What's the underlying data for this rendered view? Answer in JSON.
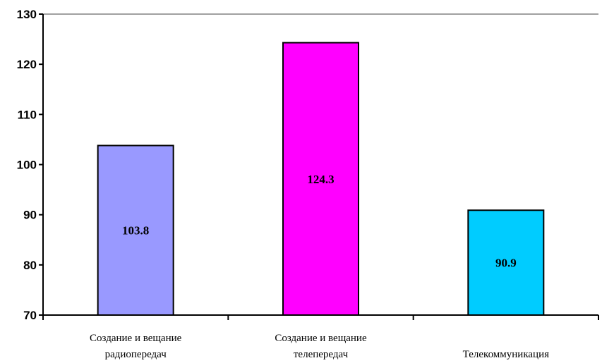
{
  "chart_data": {
    "type": "bar",
    "categories": [
      [
        "Создание и вещание",
        "радиопередач"
      ],
      [
        "Создание и вещание",
        "телепередач"
      ],
      [
        "Телекоммуникация"
      ]
    ],
    "values": [
      103.8,
      124.3,
      90.9
    ],
    "data_labels": [
      "103.8",
      "124.3",
      "90.9"
    ],
    "bar_colors": [
      "#9999ff",
      "#ff00ff",
      "#00ccff"
    ],
    "ylim": [
      70,
      130
    ],
    "yticks": [
      70,
      80,
      90,
      100,
      110,
      120,
      130
    ],
    "ytick_labels": [
      "70",
      "80",
      "90",
      "100",
      "110",
      "120",
      "130"
    ],
    "grid": false,
    "title": "",
    "xlabel": "",
    "ylabel": ""
  }
}
